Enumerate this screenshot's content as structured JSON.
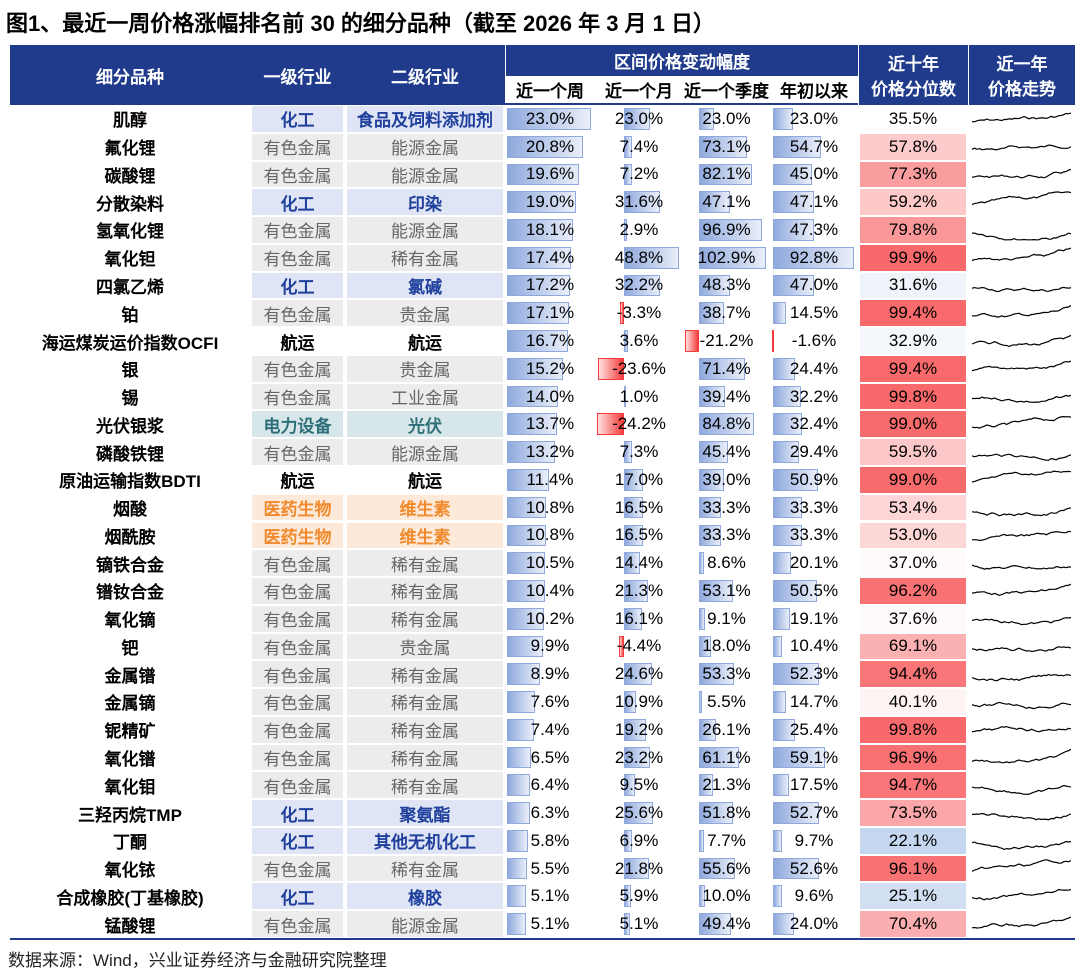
{
  "header": {
    "title": "图1、最近一周价格涨幅排名前 30 的细分品种（截至 2026 年 3 月 1 日）"
  },
  "table": {
    "columns": {
      "name": "细分品种",
      "industry1": "一级行业",
      "industry2": "二级行业",
      "change_group": "区间价格变动幅度",
      "change_cols": [
        "近一个周",
        "近一个月",
        "近一个季度",
        "年初以来"
      ],
      "percentile": [
        "近十年",
        "价格分位数"
      ],
      "trend": [
        "近一年",
        "价格走势"
      ]
    },
    "rows": [
      [
        "肌醇",
        "化工",
        "食品及饲料添加剂",
        "23.0%",
        "23.0%",
        "23.0%",
        "23.0%",
        "35.5%"
      ],
      [
        "氟化锂",
        "有色金属",
        "能源金属",
        "20.8%",
        "7.4%",
        "73.1%",
        "54.7%",
        "57.8%"
      ],
      [
        "碳酸锂",
        "有色金属",
        "能源金属",
        "19.6%",
        "7.2%",
        "82.1%",
        "45.0%",
        "77.3%"
      ],
      [
        "分散染料",
        "化工",
        "印染",
        "19.0%",
        "31.6%",
        "47.1%",
        "47.1%",
        "59.2%"
      ],
      [
        "氢氧化锂",
        "有色金属",
        "能源金属",
        "18.1%",
        "2.9%",
        "96.9%",
        "47.3%",
        "79.8%"
      ],
      [
        "氧化钽",
        "有色金属",
        "稀有金属",
        "17.4%",
        "48.8%",
        "102.9%",
        "92.8%",
        "99.9%"
      ],
      [
        "四氯乙烯",
        "化工",
        "氯碱",
        "17.2%",
        "32.2%",
        "48.3%",
        "47.0%",
        "31.6%"
      ],
      [
        "铂",
        "有色金属",
        "贵金属",
        "17.1%",
        "-3.3%",
        "38.7%",
        "14.5%",
        "99.4%"
      ],
      [
        "海运煤炭运价指数OCFI",
        "航运",
        "航运",
        "16.7%",
        "3.6%",
        "-21.2%",
        "-1.6%",
        "32.9%"
      ],
      [
        "银",
        "有色金属",
        "贵金属",
        "15.2%",
        "-23.6%",
        "71.4%",
        "24.4%",
        "99.4%"
      ],
      [
        "锡",
        "有色金属",
        "工业金属",
        "14.0%",
        "1.0%",
        "39.4%",
        "32.2%",
        "99.8%"
      ],
      [
        "光伏银浆",
        "电力设备",
        "光伏",
        "13.7%",
        "-24.2%",
        "84.8%",
        "32.4%",
        "99.0%"
      ],
      [
        "磷酸铁锂",
        "有色金属",
        "能源金属",
        "13.2%",
        "7.3%",
        "45.4%",
        "29.4%",
        "59.5%"
      ],
      [
        "原油运输指数BDTI",
        "航运",
        "航运",
        "11.4%",
        "17.0%",
        "39.0%",
        "50.9%",
        "99.0%"
      ],
      [
        "烟酸",
        "医药生物",
        "维生素",
        "10.8%",
        "16.5%",
        "33.3%",
        "33.3%",
        "53.4%"
      ],
      [
        "烟酰胺",
        "医药生物",
        "维生素",
        "10.8%",
        "16.5%",
        "33.3%",
        "33.3%",
        "53.0%"
      ],
      [
        "镝铁合金",
        "有色金属",
        "稀有金属",
        "10.5%",
        "14.4%",
        "8.6%",
        "20.1%",
        "37.0%"
      ],
      [
        "镨钕合金",
        "有色金属",
        "稀有金属",
        "10.4%",
        "21.3%",
        "53.1%",
        "50.5%",
        "96.2%"
      ],
      [
        "氧化镝",
        "有色金属",
        "稀有金属",
        "10.2%",
        "16.1%",
        "9.1%",
        "19.1%",
        "37.6%"
      ],
      [
        "钯",
        "有色金属",
        "贵金属",
        "9.9%",
        "-4.4%",
        "18.0%",
        "10.4%",
        "69.1%"
      ],
      [
        "金属镨",
        "有色金属",
        "稀有金属",
        "8.9%",
        "24.6%",
        "53.3%",
        "52.3%",
        "94.4%"
      ],
      [
        "金属镝",
        "有色金属",
        "稀有金属",
        "7.6%",
        "10.9%",
        "5.5%",
        "14.7%",
        "40.1%"
      ],
      [
        "铌精矿",
        "有色金属",
        "稀有金属",
        "7.4%",
        "19.2%",
        "26.1%",
        "25.4%",
        "99.8%"
      ],
      [
        "氧化镨",
        "有色金属",
        "稀有金属",
        "6.5%",
        "23.2%",
        "61.1%",
        "59.1%",
        "96.9%"
      ],
      [
        "氧化钼",
        "有色金属",
        "稀有金属",
        "6.4%",
        "9.5%",
        "21.3%",
        "17.5%",
        "94.7%"
      ],
      [
        "三羟丙烷TMP",
        "化工",
        "聚氨酯",
        "6.3%",
        "25.6%",
        "51.8%",
        "52.7%",
        "73.5%"
      ],
      [
        "丁酮",
        "化工",
        "其他无机化工",
        "5.8%",
        "6.9%",
        "7.7%",
        "9.7%",
        "22.1%"
      ],
      [
        "氧化铱",
        "有色金属",
        "稀有金属",
        "5.5%",
        "21.8%",
        "55.6%",
        "52.6%",
        "96.1%"
      ],
      [
        "合成橡胶(丁基橡胶)",
        "化工",
        "橡胶",
        "5.1%",
        "5.9%",
        "10.0%",
        "9.6%",
        "25.1%"
      ],
      [
        "锰酸锂",
        "有色金属",
        "能源金属",
        "5.1%",
        "5.1%",
        "49.4%",
        "24.0%",
        "70.4%"
      ]
    ]
  },
  "footer": {
    "source": "数据来源：Wind，兴业证券经济与金融研究院整理"
  }
}
